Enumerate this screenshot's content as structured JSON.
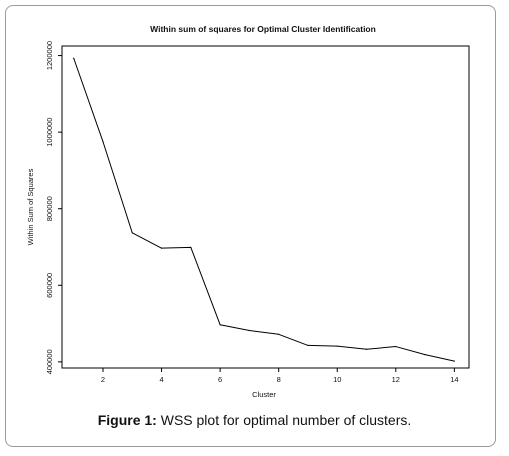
{
  "caption": {
    "label": "Figure 1:",
    "text": "WSS plot for optimal number of clusters."
  },
  "chart_data": {
    "type": "line",
    "title": "Within sum of squares for Optimal Cluster Identification",
    "xlabel": "Cluster",
    "ylabel": "Within Sum of Squares",
    "x": [
      1,
      2,
      3,
      4,
      5,
      6,
      7,
      8,
      9,
      10,
      11,
      12,
      13,
      14
    ],
    "series": [
      {
        "values": [
          1193000,
          975000,
          737000,
          697000,
          699000,
          497000,
          482000,
          472000,
          443000,
          441000,
          433000,
          440000,
          419000,
          402000
        ]
      }
    ],
    "xlim": [
      0.6,
      14.5
    ],
    "ylim": [
      384000,
      1225000
    ],
    "xticks": [
      2,
      4,
      6,
      8,
      10,
      12,
      14
    ],
    "xtick_labels": [
      "2",
      "4",
      "6",
      "8",
      "10",
      "12",
      "14"
    ],
    "yticks": [
      400000,
      600000,
      800000,
      1000000,
      1200000
    ],
    "ytick_labels": [
      "400000",
      "600000",
      "800000",
      "1000000",
      "1200000"
    ],
    "grid": false,
    "line_color": "#000000"
  }
}
